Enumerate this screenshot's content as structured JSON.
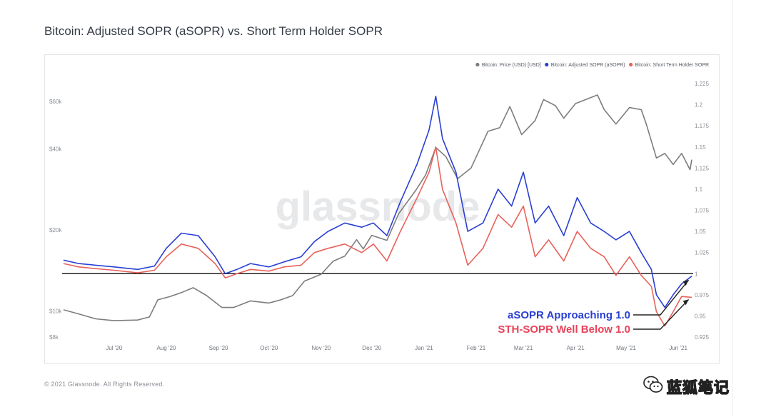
{
  "header": {
    "title": "Bitcoin: Adjusted SOPR (aSOPR) vs. Short Term Holder SOPR"
  },
  "footer": {
    "copyright": "© 2021 Glassnode. All Rights Reserved.",
    "wechat_name": "蓝狐笔记"
  },
  "caption": "",
  "chart_data": {
    "type": "line",
    "title": "Bitcoin: Adjusted SOPR (aSOPR) vs. Short Term Holder SOPR",
    "watermark": "glassnode",
    "legend_position": "top-right",
    "grid": false,
    "x_ticks": [
      "Jul '20",
      "Aug '20",
      "Sep '20",
      "Oct '20",
      "Nov '20",
      "Dec '20",
      "Jan '21",
      "Feb '21",
      "Mar '21",
      "Apr '21",
      "May '21",
      "Jun '21"
    ],
    "x_range": [
      "2020-06-01",
      "2021-06-09"
    ],
    "left_axis": {
      "scale": "log",
      "range": [
        8000,
        70000
      ],
      "ticks": [
        {
          "value": 8000,
          "label": "$8k"
        },
        {
          "value": 10000,
          "label": "$10k"
        },
        {
          "value": 20000,
          "label": "$20k"
        },
        {
          "value": 40000,
          "label": "$40k"
        },
        {
          "value": 60000,
          "label": "$60k"
        }
      ]
    },
    "right_axis": {
      "scale": "linear",
      "range": [
        0.925,
        1.225
      ],
      "ticks": [
        "1.225",
        "1.2",
        "1.175",
        "1.15",
        "1.125",
        "1.1",
        "1.075",
        "1.05",
        "1.025",
        "1",
        "0.975",
        "0.95",
        "0.925"
      ]
    },
    "reference_line": {
      "axis": "right",
      "value": 1.0,
      "color": "#222222"
    },
    "series": [
      {
        "name": "Bitcoin: Price (USD) [USD]",
        "axis": "left",
        "color": "#7d7d7d",
        "points": [
          [
            "2020-06-01",
            10100
          ],
          [
            "2020-06-10",
            9750
          ],
          [
            "2020-06-20",
            9350
          ],
          [
            "2020-07-01",
            9200
          ],
          [
            "2020-07-15",
            9250
          ],
          [
            "2020-07-22",
            9500
          ],
          [
            "2020-07-27",
            11000
          ],
          [
            "2020-08-03",
            11300
          ],
          [
            "2020-08-10",
            11700
          ],
          [
            "2020-08-17",
            12200
          ],
          [
            "2020-08-25",
            11400
          ],
          [
            "2020-09-03",
            10300
          ],
          [
            "2020-09-10",
            10300
          ],
          [
            "2020-09-20",
            10900
          ],
          [
            "2020-10-01",
            10700
          ],
          [
            "2020-10-08",
            11000
          ],
          [
            "2020-10-15",
            11400
          ],
          [
            "2020-10-22",
            12900
          ],
          [
            "2020-11-01",
            13700
          ],
          [
            "2020-11-08",
            15300
          ],
          [
            "2020-11-15",
            16000
          ],
          [
            "2020-11-22",
            18400
          ],
          [
            "2020-11-26",
            17000
          ],
          [
            "2020-12-01",
            19100
          ],
          [
            "2020-12-10",
            18300
          ],
          [
            "2020-12-17",
            23000
          ],
          [
            "2020-12-27",
            28000
          ],
          [
            "2021-01-02",
            32000
          ],
          [
            "2021-01-08",
            40500
          ],
          [
            "2021-01-14",
            37500
          ],
          [
            "2021-01-21",
            31000
          ],
          [
            "2021-01-29",
            34000
          ],
          [
            "2021-02-08",
            46500
          ],
          [
            "2021-02-15",
            48000
          ],
          [
            "2021-02-21",
            57500
          ],
          [
            "2021-02-28",
            45200
          ],
          [
            "2021-03-08",
            51000
          ],
          [
            "2021-03-13",
            61000
          ],
          [
            "2021-03-20",
            58000
          ],
          [
            "2021-03-25",
            52000
          ],
          [
            "2021-04-01",
            59000
          ],
          [
            "2021-04-14",
            63500
          ],
          [
            "2021-04-18",
            56000
          ],
          [
            "2021-04-25",
            49500
          ],
          [
            "2021-05-03",
            57000
          ],
          [
            "2021-05-10",
            56000
          ],
          [
            "2021-05-13",
            49500
          ],
          [
            "2021-05-19",
            37000
          ],
          [
            "2021-05-24",
            38500
          ],
          [
            "2021-05-29",
            35000
          ],
          [
            "2021-06-03",
            38500
          ],
          [
            "2021-06-08",
            33500
          ],
          [
            "2021-06-09",
            36500
          ]
        ]
      },
      {
        "name": "Bitcoin: Adjusted SOPR (aSOPR)",
        "axis": "right",
        "color": "#2a3fd2",
        "points": [
          [
            "2020-06-01",
            1.016
          ],
          [
            "2020-06-10",
            1.012
          ],
          [
            "2020-06-20",
            1.01
          ],
          [
            "2020-07-01",
            1.008
          ],
          [
            "2020-07-15",
            1.005
          ],
          [
            "2020-07-25",
            1.009
          ],
          [
            "2020-08-01",
            1.03
          ],
          [
            "2020-08-10",
            1.048
          ],
          [
            "2020-08-20",
            1.045
          ],
          [
            "2020-08-30",
            1.02
          ],
          [
            "2020-09-05",
            1.0
          ],
          [
            "2020-09-12",
            1.005
          ],
          [
            "2020-09-20",
            1.012
          ],
          [
            "2020-10-01",
            1.008
          ],
          [
            "2020-10-10",
            1.014
          ],
          [
            "2020-10-20",
            1.02
          ],
          [
            "2020-10-28",
            1.038
          ],
          [
            "2020-11-05",
            1.05
          ],
          [
            "2020-11-15",
            1.06
          ],
          [
            "2020-11-25",
            1.055
          ],
          [
            "2020-12-02",
            1.06
          ],
          [
            "2020-12-10",
            1.045
          ],
          [
            "2020-12-18",
            1.085
          ],
          [
            "2020-12-28",
            1.13
          ],
          [
            "2021-01-04",
            1.17
          ],
          [
            "2021-01-08",
            1.21
          ],
          [
            "2021-01-12",
            1.16
          ],
          [
            "2021-01-20",
            1.12
          ],
          [
            "2021-01-27",
            1.05
          ],
          [
            "2021-02-05",
            1.06
          ],
          [
            "2021-02-14",
            1.1
          ],
          [
            "2021-02-22",
            1.08
          ],
          [
            "2021-03-01",
            1.12
          ],
          [
            "2021-03-08",
            1.06
          ],
          [
            "2021-03-16",
            1.08
          ],
          [
            "2021-03-25",
            1.045
          ],
          [
            "2021-04-02",
            1.09
          ],
          [
            "2021-04-10",
            1.06
          ],
          [
            "2021-04-18",
            1.05
          ],
          [
            "2021-04-25",
            1.04
          ],
          [
            "2021-05-03",
            1.05
          ],
          [
            "2021-05-10",
            1.025
          ],
          [
            "2021-05-16",
            1.005
          ],
          [
            "2021-05-19",
            0.975
          ],
          [
            "2021-05-24",
            0.96
          ],
          [
            "2021-05-29",
            0.975
          ],
          [
            "2021-06-03",
            0.988
          ],
          [
            "2021-06-09",
            0.997
          ]
        ]
      },
      {
        "name": "Bitcoin: Short Term Holder SOPR",
        "axis": "right",
        "color": "#e8625a",
        "points": [
          [
            "2020-06-01",
            1.012
          ],
          [
            "2020-06-10",
            1.008
          ],
          [
            "2020-06-20",
            1.006
          ],
          [
            "2020-07-01",
            1.004
          ],
          [
            "2020-07-15",
            1.001
          ],
          [
            "2020-07-25",
            1.004
          ],
          [
            "2020-08-01",
            1.02
          ],
          [
            "2020-08-10",
            1.035
          ],
          [
            "2020-08-20",
            1.03
          ],
          [
            "2020-08-30",
            1.012
          ],
          [
            "2020-09-05",
            0.995
          ],
          [
            "2020-09-12",
            1.0
          ],
          [
            "2020-09-20",
            1.005
          ],
          [
            "2020-10-01",
            1.003
          ],
          [
            "2020-10-10",
            1.008
          ],
          [
            "2020-10-20",
            1.01
          ],
          [
            "2020-10-28",
            1.025
          ],
          [
            "2020-11-05",
            1.03
          ],
          [
            "2020-11-15",
            1.035
          ],
          [
            "2020-11-25",
            1.025
          ],
          [
            "2020-12-02",
            1.035
          ],
          [
            "2020-12-10",
            1.015
          ],
          [
            "2020-12-18",
            1.05
          ],
          [
            "2020-12-28",
            1.09
          ],
          [
            "2021-01-04",
            1.12
          ],
          [
            "2021-01-08",
            1.15
          ],
          [
            "2021-01-12",
            1.1
          ],
          [
            "2021-01-20",
            1.06
          ],
          [
            "2021-01-27",
            1.01
          ],
          [
            "2021-02-05",
            1.03
          ],
          [
            "2021-02-14",
            1.07
          ],
          [
            "2021-02-22",
            1.055
          ],
          [
            "2021-03-01",
            1.08
          ],
          [
            "2021-03-08",
            1.02
          ],
          [
            "2021-03-16",
            1.04
          ],
          [
            "2021-03-25",
            1.015
          ],
          [
            "2021-04-02",
            1.05
          ],
          [
            "2021-04-10",
            1.03
          ],
          [
            "2021-04-18",
            1.02
          ],
          [
            "2021-04-25",
            0.998
          ],
          [
            "2021-05-03",
            1.02
          ],
          [
            "2021-05-10",
            0.998
          ],
          [
            "2021-05-16",
            0.985
          ],
          [
            "2021-05-19",
            0.955
          ],
          [
            "2021-05-24",
            0.938
          ],
          [
            "2021-05-29",
            0.955
          ],
          [
            "2021-06-03",
            0.973
          ],
          [
            "2021-06-09",
            0.972
          ]
        ]
      }
    ],
    "annotations": [
      {
        "text": "aSOPR Approaching 1.0",
        "color": "#2a3fd2",
        "arrow_to": [
          "2021-06-08",
          0.995
        ]
      },
      {
        "text": "STH-SOPR Well Below 1.0",
        "color": "#e8425a",
        "arrow_to": [
          "2021-06-08",
          0.972
        ]
      }
    ]
  }
}
